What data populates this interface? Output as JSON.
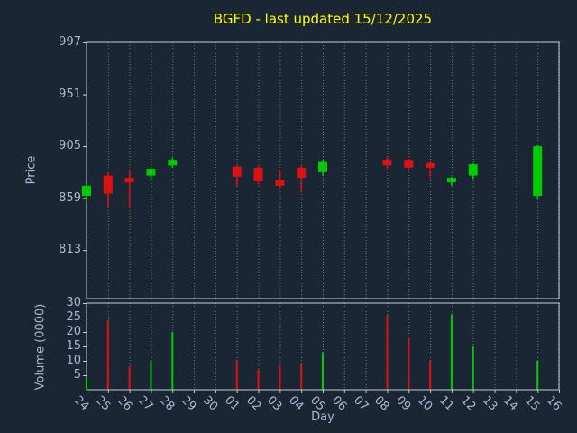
{
  "title": "BGFD - last updated 15/12/2025",
  "colors": {
    "background": "#1a2633",
    "text": "#aab8d4",
    "title": "#ffff00",
    "up": "#00cc00",
    "down": "#dd1111",
    "grid": "#78849a",
    "frame": "#c7ccd6"
  },
  "chart_data": [
    {
      "type": "candlestick",
      "title": "BGFD - last updated 15/12/2025",
      "xlabel": "Day",
      "ylabel": "Price",
      "ylim": [
        770,
        997
      ],
      "yticks": [
        997,
        951,
        905,
        859,
        813
      ],
      "grid": true,
      "x_categories": [
        "24",
        "25",
        "26",
        "27",
        "28",
        "29",
        "30",
        "01",
        "02",
        "03",
        "04",
        "05",
        "06",
        "07",
        "08",
        "09",
        "10",
        "11",
        "12",
        "13",
        "14",
        "15",
        "16"
      ],
      "candles": [
        {
          "day": "24",
          "open": 861,
          "high": 872,
          "low": 856,
          "close": 870
        },
        {
          "day": "25",
          "open": 879,
          "high": 881,
          "low": 851,
          "close": 863
        },
        {
          "day": "26",
          "open": 877,
          "high": 884,
          "low": 850,
          "close": 873
        },
        {
          "day": "27",
          "open": 879,
          "high": 886,
          "low": 876,
          "close": 885
        },
        {
          "day": "28",
          "open": 888,
          "high": 895,
          "low": 886,
          "close": 893
        },
        {
          "day": "01",
          "open": 887,
          "high": 888,
          "low": 869,
          "close": 878
        },
        {
          "day": "02",
          "open": 886,
          "high": 888,
          "low": 871,
          "close": 874
        },
        {
          "day": "03",
          "open": 875,
          "high": 884,
          "low": 867,
          "close": 870
        },
        {
          "day": "04",
          "open": 886,
          "high": 888,
          "low": 864,
          "close": 877
        },
        {
          "day": "05",
          "open": 882,
          "high": 893,
          "low": 879,
          "close": 891
        },
        {
          "day": "08",
          "open": 893,
          "high": 895,
          "low": 885,
          "close": 888
        },
        {
          "day": "09",
          "open": 893,
          "high": 894,
          "low": 883,
          "close": 886
        },
        {
          "day": "10",
          "open": 890,
          "high": 891,
          "low": 878,
          "close": 886
        },
        {
          "day": "11",
          "open": 873,
          "high": 878,
          "low": 870,
          "close": 877
        },
        {
          "day": "12",
          "open": 879,
          "high": 890,
          "low": 876,
          "close": 889
        },
        {
          "day": "15",
          "open": 861,
          "high": 906,
          "low": 858,
          "close": 905
        }
      ]
    },
    {
      "type": "bar",
      "ylabel": "Volume (0000)",
      "ylim": [
        0,
        30
      ],
      "yticks": [
        30,
        25,
        20,
        15,
        10,
        5
      ],
      "grid": true,
      "bars": [
        {
          "day": "24",
          "value": 4,
          "direction": "up"
        },
        {
          "day": "25",
          "value": 24,
          "direction": "down"
        },
        {
          "day": "26",
          "value": 8,
          "direction": "down"
        },
        {
          "day": "27",
          "value": 10,
          "direction": "up"
        },
        {
          "day": "28",
          "value": 20,
          "direction": "up"
        },
        {
          "day": "01",
          "value": 10,
          "direction": "down"
        },
        {
          "day": "02",
          "value": 7,
          "direction": "down"
        },
        {
          "day": "03",
          "value": 8,
          "direction": "down"
        },
        {
          "day": "04",
          "value": 9,
          "direction": "down"
        },
        {
          "day": "05",
          "value": 13,
          "direction": "up"
        },
        {
          "day": "08",
          "value": 26,
          "direction": "down"
        },
        {
          "day": "09",
          "value": 18,
          "direction": "down"
        },
        {
          "day": "10",
          "value": 10,
          "direction": "down"
        },
        {
          "day": "11",
          "value": 26,
          "direction": "up"
        },
        {
          "day": "12",
          "value": 15,
          "direction": "up"
        },
        {
          "day": "15",
          "value": 10,
          "direction": "up"
        }
      ]
    }
  ]
}
